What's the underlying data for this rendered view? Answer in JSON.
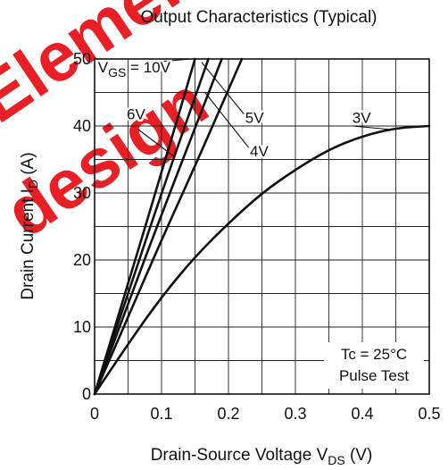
{
  "chart_data": {
    "type": "line",
    "title": "Output Characteristics  (Typical)",
    "xlabel": {
      "main": "Drain-Source Voltage  V",
      "sub": "DS",
      "unit": " (V)"
    },
    "ylabel": {
      "main": "Drain Current  I",
      "sub": "D",
      "unit": " (A)"
    },
    "xlim": [
      0,
      0.5
    ],
    "ylim": [
      0,
      50
    ],
    "x_ticks": [
      0,
      0.1,
      0.2,
      0.3,
      0.4,
      0.5
    ],
    "x_tick_labels": [
      "0",
      "0.1",
      "0.2",
      "0.3",
      "0.4",
      "0.5"
    ],
    "y_ticks": [
      0,
      10,
      20,
      30,
      40,
      50
    ],
    "y_tick_labels": [
      "0",
      "10",
      "20",
      "30",
      "40",
      "50"
    ],
    "x_grid_step": 0.05,
    "y_grid_step": 5,
    "grid": true,
    "series": [
      {
        "name": "10V",
        "x": [
          0,
          0.05,
          0.1,
          0.15
        ],
        "y": [
          0,
          16.5,
          33,
          50
        ]
      },
      {
        "name": "6V",
        "x": [
          0,
          0.05,
          0.1,
          0.17
        ],
        "y": [
          0,
          15,
          30,
          50
        ]
      },
      {
        "name": "5V",
        "x": [
          0,
          0.05,
          0.1,
          0.19
        ],
        "y": [
          0,
          13.5,
          26.8,
          50
        ]
      },
      {
        "name": "4V",
        "x": [
          0,
          0.05,
          0.1,
          0.15,
          0.22
        ],
        "y": [
          0,
          11.5,
          23,
          34,
          50
        ]
      },
      {
        "name": "3V",
        "x": [
          0,
          0.05,
          0.1,
          0.15,
          0.2,
          0.25,
          0.3,
          0.35,
          0.4,
          0.45,
          0.5
        ],
        "y": [
          0,
          7.5,
          14.5,
          20.5,
          25.5,
          30,
          33.5,
          36.5,
          38.5,
          39.7,
          40
        ]
      }
    ],
    "curve_labels": [
      {
        "series": "10V",
        "text_main": "V",
        "text_sub": "GS",
        "text_rest": " = 10V",
        "at": [
          0.005,
          48
        ],
        "leader": [
          [
            0.085,
            49.5
          ],
          [
            0.145,
            50
          ]
        ]
      },
      {
        "series": "6V",
        "text": "6V",
        "at": [
          0.048,
          41
        ],
        "leader": [
          [
            0.065,
            39.5
          ],
          [
            0.118,
            35.5
          ]
        ]
      },
      {
        "series": "5V",
        "text": "5V",
        "at": [
          0.225,
          40.5
        ],
        "leader": [
          [
            0.223,
            41.8
          ],
          [
            0.16,
            49.5
          ]
        ]
      },
      {
        "series": "4V",
        "text": "4V",
        "at": [
          0.232,
          35.5
        ],
        "leader": [
          [
            0.23,
            36.8
          ],
          [
            0.165,
            45
          ]
        ]
      },
      {
        "series": "3V",
        "text": "3V",
        "at": [
          0.385,
          40.5
        ],
        "leader": [
          [
            0.385,
            40
          ],
          [
            0.44,
            39.5
          ]
        ]
      }
    ],
    "annotation": {
      "lines": [
        "Tc = 25°C",
        "Pulse Test"
      ]
    }
  },
  "watermark": {
    "lines": [
      "Element",
      "design"
    ],
    "color": "#e8141b"
  }
}
